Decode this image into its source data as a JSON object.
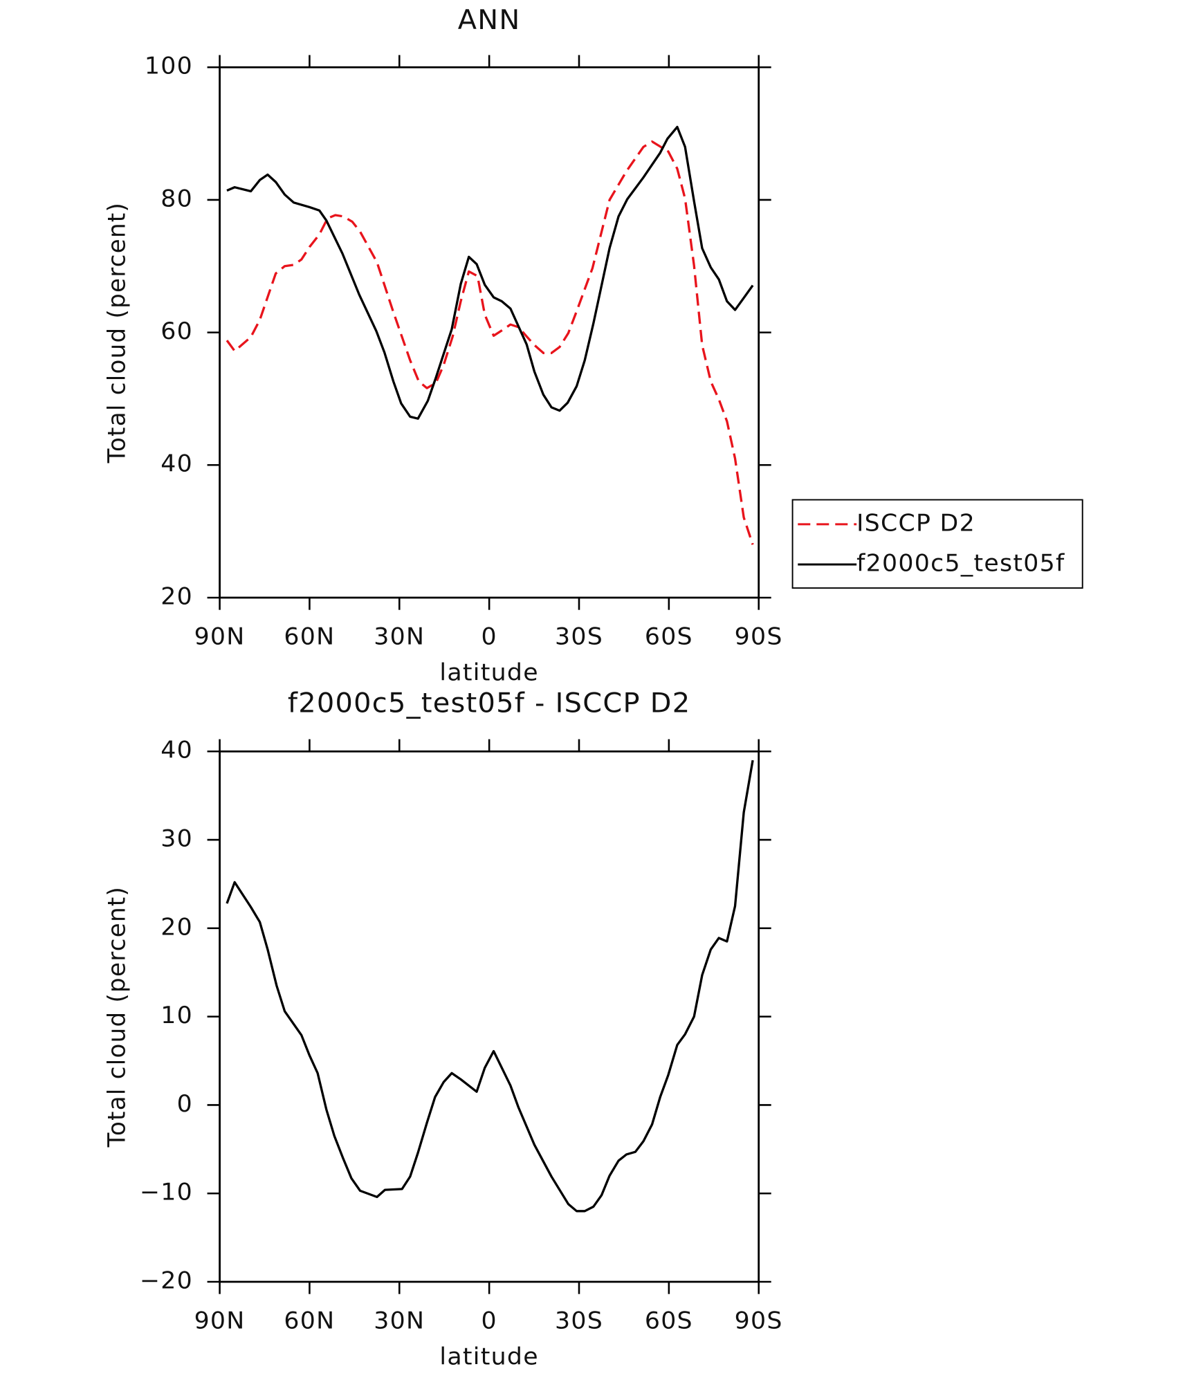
{
  "chart_data": [
    {
      "type": "line",
      "title": "ANN",
      "x_label": "latitude",
      "y_label": "Total cloud (percent)",
      "xlim": [
        90,
        -90
      ],
      "xticks": [
        {
          "value": 90,
          "label": "90N"
        },
        {
          "value": 60,
          "label": "60N"
        },
        {
          "value": 30,
          "label": "30N"
        },
        0,
        {
          "value": -30,
          "label": "30S"
        },
        {
          "value": -60,
          "label": "60S"
        },
        {
          "value": -90,
          "label": "90S"
        }
      ],
      "ylim": [
        20,
        100
      ],
      "yticks": [
        20,
        40,
        60,
        80,
        100
      ],
      "legend": "right",
      "series": [
        {
          "name": "ISCCP D2",
          "color": "#e8141c",
          "dashed": true,
          "x": [
            87.6,
            85,
            79.6,
            76.6,
            71.3,
            68.3,
            65.3,
            62.7,
            60,
            56.7,
            54,
            51.4,
            48.7,
            45.7,
            43.1,
            37.5,
            32.1,
            26.4,
            23.5,
            20.8,
            17.8,
            15.2,
            12.2,
            9.5,
            6.8,
            3.9,
            1.5,
            -1.5,
            -4.2,
            -7.1,
            -9.8,
            -12.5,
            -15.1,
            -18.1,
            -20.8,
            -23.5,
            -26.4,
            -29.2,
            -34.5,
            -40.2,
            -45.8,
            -51.5,
            -54.4,
            -59.8,
            -62.8,
            -65.4,
            -68.4,
            -71.1,
            -74,
            -76.7,
            -79.4,
            -82.1,
            -85,
            -88
          ],
          "values": [
            58.8,
            57.2,
            59.3,
            61.9,
            68.9,
            70.0,
            70.2,
            71.0,
            72.9,
            74.8,
            77.2,
            77.7,
            77.5,
            76.7,
            75.2,
            70.6,
            63.2,
            55.8,
            52.6,
            51.6,
            52.4,
            55.1,
            59.4,
            64.7,
            69.2,
            68.5,
            62.7,
            59.5,
            60.3,
            61.2,
            60.8,
            59.4,
            58.1,
            56.9,
            56.9,
            57.8,
            59.9,
            63.2,
            69.7,
            80.0,
            84.3,
            88.0,
            88.8,
            87.3,
            84.7,
            80.2,
            70.1,
            58.1,
            52.6,
            49.9,
            46.6,
            41.0,
            32.1,
            28.0
          ]
        },
        {
          "name": "f2000c5_test05f",
          "color": "#000000",
          "dashed": false,
          "x": [
            87.6,
            85,
            79.6,
            76.6,
            74,
            71.3,
            68.3,
            65.3,
            60,
            56.7,
            54.4,
            49,
            43.4,
            37.7,
            35,
            32,
            29.4,
            26.4,
            23.8,
            20.5,
            17.8,
            12.5,
            9.5,
            6.8,
            4.2,
            1.5,
            -1.5,
            -4.2,
            -7.1,
            -12.5,
            -15.1,
            -18.1,
            -20.8,
            -23.5,
            -26.2,
            -29.2,
            -31.9,
            -34.8,
            -40.2,
            -43.2,
            -46.1,
            -51.5,
            -57.1,
            -59.5,
            -62.8,
            -65.4,
            -68.4,
            -71.1,
            -74,
            -76.7,
            -79.4,
            -82.1,
            -85,
            -88
          ],
          "values": [
            81.4,
            81.9,
            81.3,
            83.0,
            83.8,
            82.7,
            80.8,
            79.6,
            78.9,
            78.4,
            76.9,
            71.9,
            65.7,
            60.2,
            57.0,
            52.6,
            49.3,
            47.3,
            47.0,
            49.7,
            53.2,
            60.5,
            67.3,
            71.4,
            70.3,
            67.2,
            65.3,
            64.7,
            63.6,
            58.2,
            54.1,
            50.6,
            48.7,
            48.2,
            49.4,
            51.9,
            55.8,
            61.4,
            72.7,
            77.5,
            80.1,
            83.4,
            87.1,
            89.2,
            91.0,
            88.0,
            79.8,
            72.7,
            69.8,
            68.0,
            64.7,
            63.4,
            65.2,
            67.1
          ]
        }
      ]
    },
    {
      "type": "line",
      "title": "f2000c5_test05f - ISCCP D2",
      "x_label": "latitude",
      "y_label": "Total cloud (percent)",
      "xlim": [
        90,
        -90
      ],
      "xticks": [
        {
          "value": 90,
          "label": "90N"
        },
        {
          "value": 60,
          "label": "60N"
        },
        {
          "value": 30,
          "label": "30N"
        },
        0,
        {
          "value": -30,
          "label": "30S"
        },
        {
          "value": -60,
          "label": "60S"
        },
        {
          "value": -90,
          "label": "90S"
        }
      ],
      "ylim": [
        -20,
        40
      ],
      "yticks": [
        {
          "value": -20,
          "label": "−20"
        },
        {
          "value": -10,
          "label": "−10"
        },
        0,
        10,
        20,
        30,
        40
      ],
      "color": "#000000",
      "x": [
        87.6,
        85,
        79.6,
        76.6,
        74,
        71,
        68.3,
        62.7,
        60,
        57.3,
        54.4,
        51.7,
        48.7,
        46,
        43.1,
        37.5,
        34.8,
        29.1,
        26.4,
        23.8,
        20.8,
        18.1,
        15.2,
        12.5,
        9.5,
        4.2,
        1.5,
        -1.5,
        -7.1,
        -9.8,
        -15.1,
        -20.8,
        -26.4,
        -29.2,
        -31.9,
        -34.8,
        -37.5,
        -40.2,
        -43.2,
        -45.8,
        -48.8,
        -51.5,
        -54.4,
        -57.1,
        -59.8,
        -62.8,
        -65.4,
        -68.4,
        -71.1,
        -74,
        -76.7,
        -79.4,
        -82.1,
        -85,
        -88
      ],
      "values": [
        22.8,
        25.2,
        22.4,
        20.7,
        17.6,
        13.5,
        10.6,
        7.9,
        5.6,
        3.6,
        -0.5,
        -3.5,
        -6.1,
        -8.3,
        -9.7,
        -10.4,
        -9.6,
        -9.5,
        -8.1,
        -5.4,
        -2.0,
        0.9,
        2.6,
        3.6,
        2.9,
        1.5,
        4.2,
        6.1,
        2.2,
        -0.3,
        -4.5,
        -8.1,
        -11.2,
        -12.0,
        -12.0,
        -11.5,
        -10.2,
        -8.0,
        -6.3,
        -5.6,
        -5.3,
        -4.1,
        -2.2,
        0.9,
        3.4,
        6.8,
        8.0,
        10.0,
        14.7,
        17.6,
        18.9,
        18.5,
        22.5,
        33.1,
        39.0
      ]
    }
  ]
}
